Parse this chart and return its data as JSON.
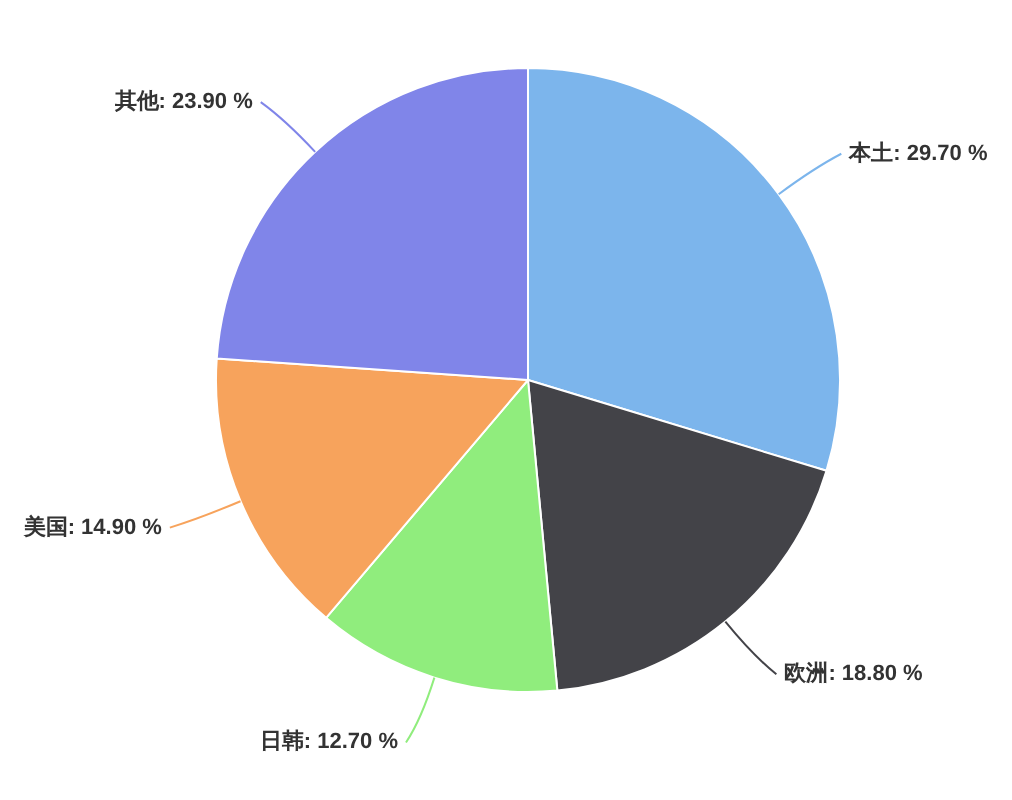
{
  "chart_data": {
    "type": "pie",
    "categories": [
      "本土",
      "欧洲",
      "日韩",
      "美国",
      "其他"
    ],
    "values": [
      29.7,
      18.8,
      12.7,
      14.9,
      23.9
    ],
    "colors": [
      "#7cb5ec",
      "#434348",
      "#90ed7d",
      "#f7a35c",
      "#8085e9"
    ],
    "value_labels": [
      "29.70 %",
      "18.80 %",
      "12.70 %",
      "14.90 %",
      "23.90 %"
    ]
  }
}
